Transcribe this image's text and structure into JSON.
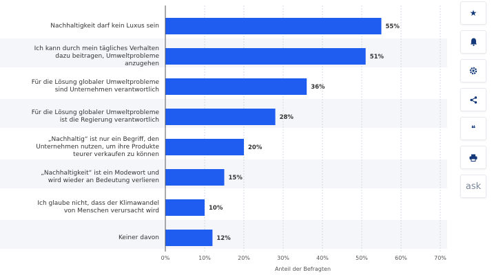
{
  "chart_data": {
    "type": "bar",
    "orientation": "horizontal",
    "categories": [
      [
        "Nachhaltigkeit darf kein Luxus sein"
      ],
      [
        "Ich kann durch mein tägliches Verhalten",
        "dazu beitragen, Umweltprobleme",
        "anzugehen"
      ],
      [
        "Für die Lösung globaler Umweltprobleme",
        "sind Unternehmen verantwortlich"
      ],
      [
        "Für die Lösung globaler Umweltprobleme",
        "ist die Regierung verantwortlich"
      ],
      [
        "„Nachhaltig“ ist nur ein Begriff, den",
        "Unternehmen nutzen, um ihre Produkte",
        "teurer verkaufen zu können"
      ],
      [
        "„Nachhaltigkeit“ ist ein Modewort und",
        "wird wieder an Bedeutung verlieren"
      ],
      [
        "Ich glaube nicht, dass der Klimawandel",
        "von Menschen verursacht wird"
      ],
      [
        "Keiner davon"
      ]
    ],
    "values": [
      55,
      51,
      36,
      28,
      20,
      15,
      10,
      12
    ],
    "value_labels": [
      "55%",
      "51%",
      "36%",
      "28%",
      "20%",
      "15%",
      "10%",
      "12%"
    ],
    "xlim": [
      0,
      70
    ],
    "xticks": [
      "0%",
      "10%",
      "20%",
      "30%",
      "40%",
      "50%",
      "60%",
      "70%"
    ],
    "xlabel": "Anteil der Befragten",
    "grid": "vertical dashed",
    "bar_color": "#1f5cf0",
    "alt_row_color": "#f4f6f9"
  },
  "sidebar": {
    "buttons": [
      {
        "icon": "star-icon",
        "glyph": "★"
      },
      {
        "icon": "bell-icon",
        "glyph": ""
      },
      {
        "icon": "gear-icon",
        "glyph": ""
      },
      {
        "icon": "share-icon",
        "glyph": ""
      },
      {
        "icon": "quote-icon",
        "glyph": "❝"
      },
      {
        "icon": "print-icon",
        "glyph": ""
      },
      {
        "icon": "ask-icon",
        "glyph": "ask"
      }
    ]
  }
}
